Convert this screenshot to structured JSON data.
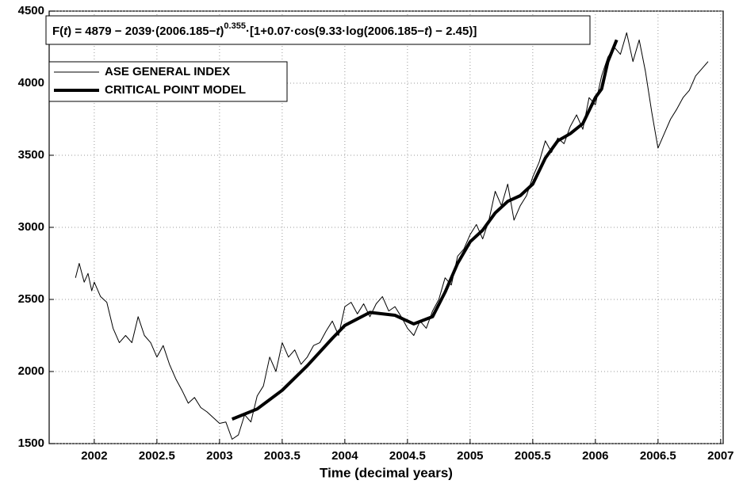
{
  "chart_data": {
    "type": "line",
    "x_label": "Time (decimal years)",
    "annotation": {
      "parts": [
        "F(",
        "t",
        ") = 4879 − 2039·(2006.185−",
        "t",
        ")"
      ],
      "exponent": "0.355",
      "rest": [
        "·[1+0.07·cos(9.33·log(2006.185−",
        "t",
        ") − 2.45)]"
      ]
    },
    "xlim": [
      2001.64,
      2007.02
    ],
    "ylim": [
      1500,
      4500
    ],
    "xticks": [
      2002,
      2002.5,
      2003,
      2003.5,
      2004,
      2004.5,
      2005,
      2005.5,
      2006,
      2006.5,
      2007
    ],
    "yticks": [
      1500,
      2000,
      2500,
      3000,
      3500,
      4000,
      4500
    ],
    "grid": true,
    "legend": "upper left",
    "series": [
      {
        "name": "ASE GENERAL INDEX",
        "color": "#000000",
        "width": 1,
        "x": [
          2001.85,
          2001.88,
          2001.92,
          2001.95,
          2001.98,
          2002.0,
          2002.05,
          2002.1,
          2002.15,
          2002.2,
          2002.25,
          2002.3,
          2002.35,
          2002.4,
          2002.45,
          2002.5,
          2002.55,
          2002.6,
          2002.65,
          2002.7,
          2002.75,
          2002.8,
          2002.85,
          2002.9,
          2002.95,
          2003.0,
          2003.05,
          2003.1,
          2003.15,
          2003.2,
          2003.25,
          2003.3,
          2003.35,
          2003.4,
          2003.45,
          2003.5,
          2003.55,
          2003.6,
          2003.65,
          2003.7,
          2003.75,
          2003.8,
          2003.85,
          2003.9,
          2003.95,
          2004.0,
          2004.05,
          2004.1,
          2004.15,
          2004.2,
          2004.25,
          2004.3,
          2004.35,
          2004.4,
          2004.45,
          2004.5,
          2004.55,
          2004.6,
          2004.65,
          2004.7,
          2004.75,
          2004.8,
          2004.85,
          2004.9,
          2004.95,
          2005.0,
          2005.05,
          2005.1,
          2005.15,
          2005.2,
          2005.25,
          2005.3,
          2005.35,
          2005.4,
          2005.45,
          2005.5,
          2005.55,
          2005.6,
          2005.65,
          2005.7,
          2005.75,
          2005.8,
          2005.85,
          2005.9,
          2005.95,
          2006.0,
          2006.05,
          2006.1,
          2006.15,
          2006.2,
          2006.25,
          2006.3,
          2006.35,
          2006.4,
          2006.45,
          2006.5,
          2006.55,
          2006.6,
          2006.65,
          2006.7,
          2006.75,
          2006.8,
          2006.85,
          2006.9
        ],
        "values": [
          2650,
          2750,
          2620,
          2680,
          2560,
          2620,
          2520,
          2480,
          2300,
          2200,
          2250,
          2200,
          2380,
          2250,
          2200,
          2100,
          2180,
          2050,
          1950,
          1870,
          1780,
          1820,
          1750,
          1720,
          1680,
          1640,
          1650,
          1530,
          1560,
          1700,
          1650,
          1830,
          1900,
          2100,
          2000,
          2200,
          2100,
          2150,
          2050,
          2100,
          2180,
          2200,
          2280,
          2350,
          2250,
          2450,
          2480,
          2400,
          2470,
          2380,
          2470,
          2520,
          2420,
          2450,
          2380,
          2300,
          2250,
          2350,
          2300,
          2420,
          2500,
          2650,
          2600,
          2800,
          2850,
          2950,
          3020,
          2920,
          3050,
          3250,
          3150,
          3300,
          3050,
          3150,
          3220,
          3350,
          3450,
          3600,
          3520,
          3620,
          3580,
          3700,
          3780,
          3680,
          3900,
          3850,
          4050,
          4180,
          4250,
          4200,
          4350,
          4150,
          4300,
          4080,
          3800,
          3550,
          3650,
          3750,
          3820,
          3900,
          3950,
          4050,
          4100,
          4150
        ]
      },
      {
        "name": "CRITICAL POINT MODEL",
        "color": "#000000",
        "width": 4,
        "x": [
          2003.1,
          2003.3,
          2003.5,
          2003.7,
          2003.9,
          2004.0,
          2004.2,
          2004.4,
          2004.55,
          2004.7,
          2004.8,
          2004.9,
          2005.0,
          2005.1,
          2005.2,
          2005.3,
          2005.4,
          2005.5,
          2005.6,
          2005.7,
          2005.8,
          2005.9,
          2006.0,
          2006.05,
          2006.1,
          2006.17
        ],
        "values": [
          1670,
          1740,
          1870,
          2040,
          2230,
          2320,
          2410,
          2390,
          2330,
          2380,
          2550,
          2750,
          2900,
          2980,
          3100,
          3180,
          3220,
          3300,
          3480,
          3600,
          3650,
          3720,
          3900,
          3960,
          4150,
          4300
        ]
      }
    ]
  }
}
